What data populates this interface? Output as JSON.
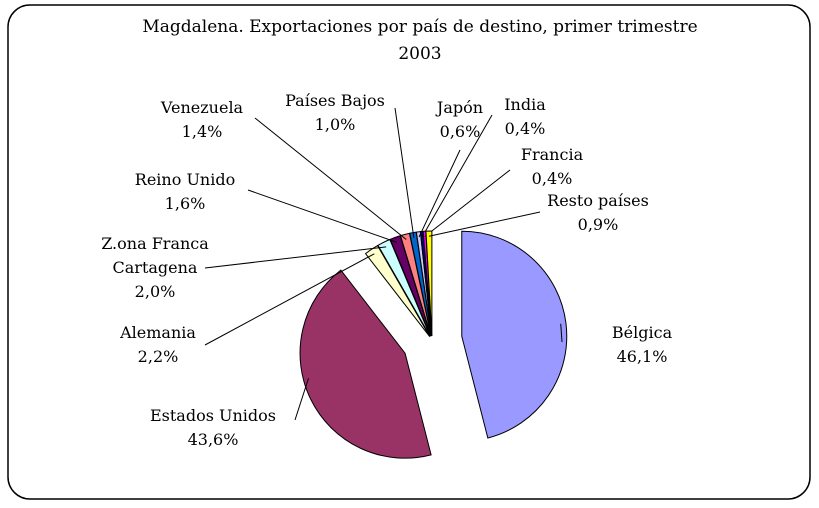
{
  "chart_data": {
    "type": "pie",
    "title": "Magdalena. Exportaciones por país de destino, primer trimestre 2003",
    "categories": [
      "Bélgica",
      "Estados Unidos",
      "Alemania",
      "Z.ona Franca Cartagena",
      "Reino Unido",
      "Venezuela",
      "Países Bajos",
      "Japón",
      "India",
      "Francia",
      "Resto países"
    ],
    "values": [
      46.1,
      43.6,
      2.2,
      2.0,
      1.6,
      1.4,
      1.0,
      0.6,
      0.4,
      0.4,
      0.9
    ],
    "value_labels": [
      "46,1%",
      "43,6%",
      "2,2%",
      "2,0%",
      "1,6%",
      "1,4%",
      "1,0%",
      "0,6%",
      "0,4%",
      "0,4%",
      "0,9%"
    ],
    "colors": [
      "#9999ff",
      "#993366",
      "#ffffcc",
      "#ccffff",
      "#660066",
      "#ff8080",
      "#0066cc",
      "#ccccff",
      "#000080",
      "#ff00ff",
      "#ffff00"
    ]
  }
}
